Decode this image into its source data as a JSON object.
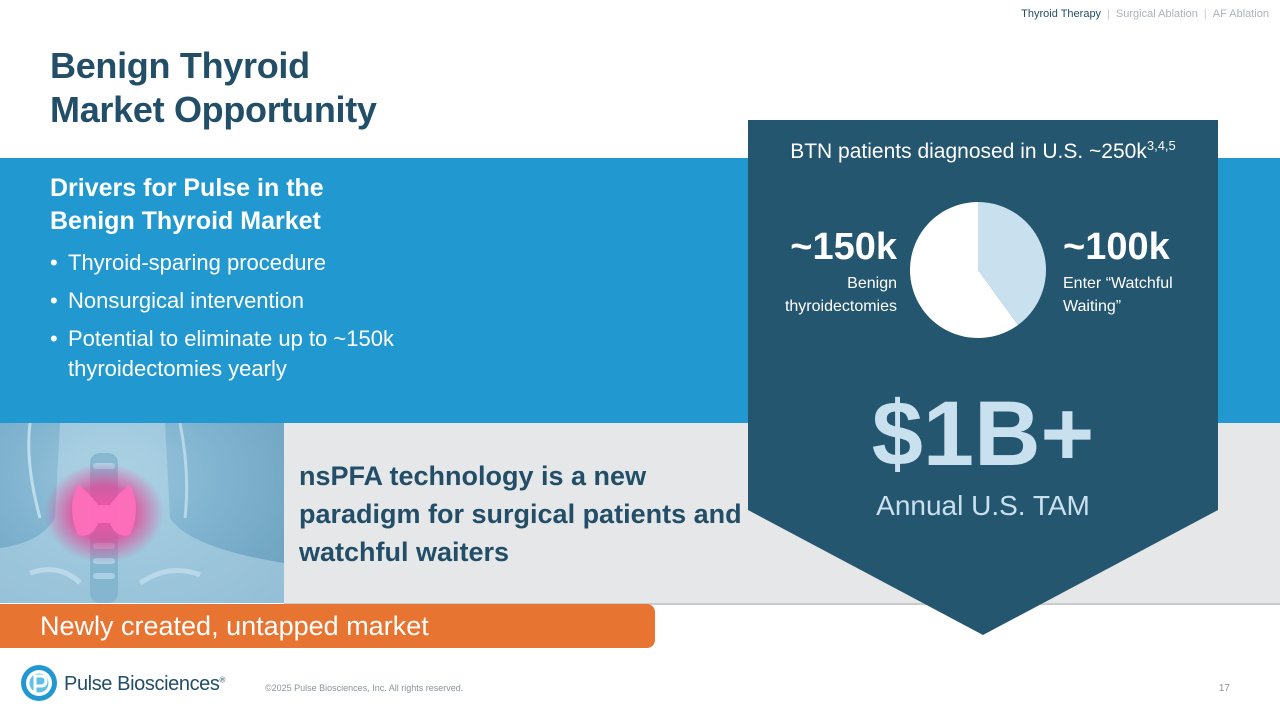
{
  "nav": {
    "items": [
      {
        "label": "Thyroid Therapy",
        "active": true
      },
      {
        "label": "Surgical Ablation",
        "active": false
      },
      {
        "label": "AF Ablation",
        "active": false
      }
    ],
    "separator": "|"
  },
  "title": {
    "line1": "Benign Thyroid",
    "line2": "Market Opportunity"
  },
  "drivers": {
    "heading_line1": "Drivers for Pulse in the",
    "heading_line2": "Benign Thyroid Market",
    "bullets": [
      "Thyroid-sparing procedure",
      "Nonsurgical intervention",
      "Potential to eliminate up to ~150k thyroidectomies yearly"
    ]
  },
  "tech_statement": "nsPFA technology is a new paradigm for surgical patients and watchful waiters",
  "banner": "Newly created, untapped market",
  "market": {
    "title": "BTN patients diagnosed in U.S. ~250k",
    "title_sup": "3,4,5",
    "left": {
      "value": "~150k",
      "label_line1": "Benign",
      "label_line2": "thyroidectomies"
    },
    "right": {
      "value": "~100k",
      "label_line1": "Enter “Watchful",
      "label_line2": "Waiting”"
    },
    "tam_value": "$1B+",
    "tam_label": "Annual U.S. TAM"
  },
  "chart_data": {
    "type": "pie",
    "slices": [
      {
        "value": 150,
        "color": "#ffffff"
      },
      {
        "value": 100,
        "color": "#c9e0ee"
      }
    ]
  },
  "footer": {
    "logo_text": "Pulse Biosciences",
    "logo_mark": "®",
    "copyright": "©2025 Pulse Biosciences, Inc. All rights reserved.",
    "page_number": "17"
  },
  "colors": {
    "navy": "#234e68",
    "blue": "#2199d0",
    "orange": "#e87432",
    "light_blue": "#c9e0ee",
    "gray": "#e6e7e8"
  }
}
